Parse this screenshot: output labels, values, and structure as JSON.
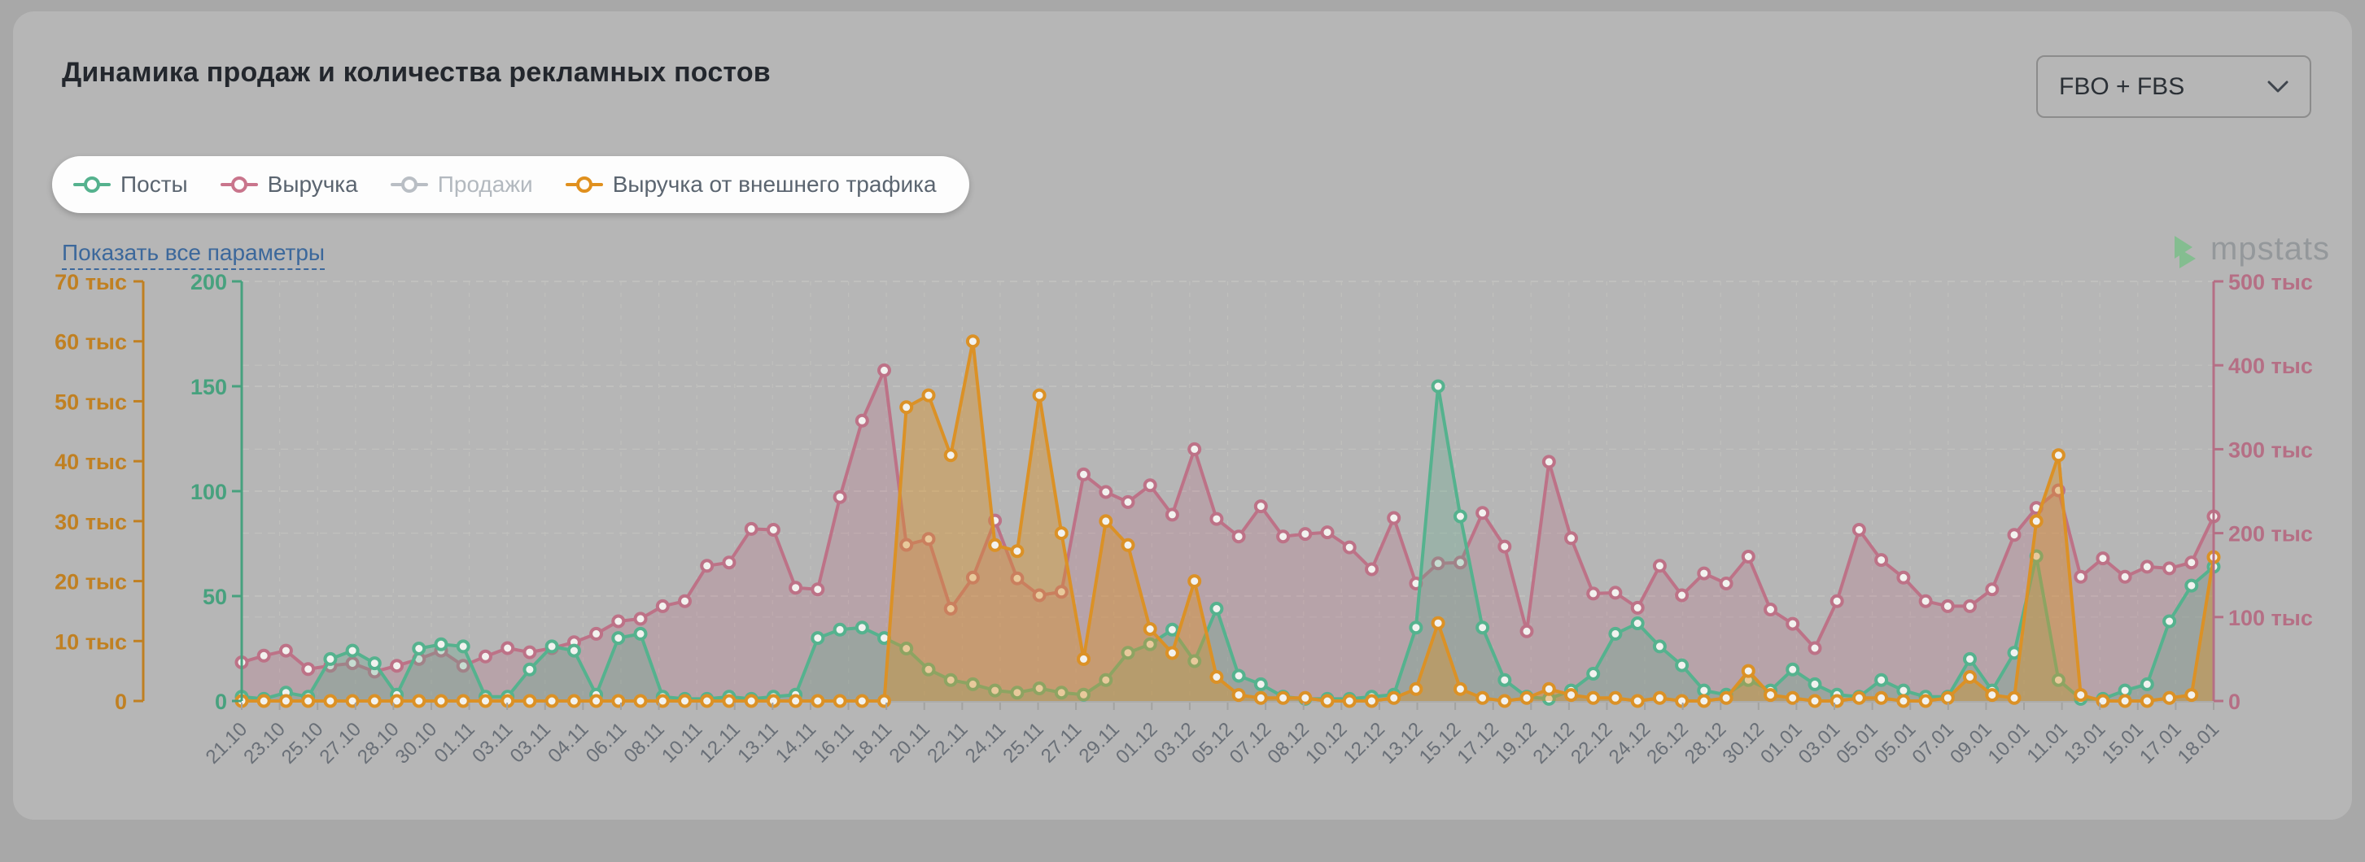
{
  "header": {
    "title": "Динамика продаж и количества рекламных постов",
    "select_value": "FBO + FBS"
  },
  "links": {
    "show_all_params": "Показать все параметры"
  },
  "watermark": {
    "text": "mpstats"
  },
  "legend": {
    "items": [
      {
        "label": "Посты",
        "color": "#55b28e",
        "disabled": false
      },
      {
        "label": "Выручка",
        "color": "#c9758c",
        "disabled": false
      },
      {
        "label": "Продажи",
        "color": "#b9bec4",
        "disabled": true
      },
      {
        "label": "Выручка от внешнего трафика",
        "color": "#e0901e",
        "disabled": false
      }
    ]
  },
  "chart_data": {
    "type": "line",
    "title": "Динамика продаж и количества рекламных постов",
    "grid": true,
    "legend_position": "top-left",
    "x_labels": [
      "21.10",
      "23.10",
      "25.10",
      "27.10",
      "28.10",
      "30.10",
      "01.11",
      "03.11",
      "03.11",
      "04.11",
      "06.11",
      "08.11",
      "10.11",
      "12.11",
      "13.11",
      "14.11",
      "16.11",
      "18.11",
      "20.11",
      "22.11",
      "24.11",
      "25.11",
      "27.11",
      "29.11",
      "01.12",
      "03.12",
      "05.12",
      "07.12",
      "08.12",
      "10.12",
      "12.12",
      "13.12",
      "15.12",
      "17.12",
      "19.12",
      "21.12",
      "22.12",
      "24.12",
      "26.12",
      "28.12",
      "30.12",
      "01.01",
      "03.01",
      "05.01",
      "05.01",
      "07.01",
      "09.01",
      "10.01",
      "11.01",
      "13.01",
      "15.01",
      "17.01",
      "18.01"
    ],
    "axes": {
      "left_outer": {
        "color": "#c08022",
        "max": 70000,
        "unit": "тыс",
        "ticks": [
          "70 тыс",
          "60 тыс",
          "50 тыс",
          "40 тыс",
          "30 тыс",
          "20 тыс",
          "10 тыс",
          "0"
        ]
      },
      "left_inner": {
        "color": "#47a17e",
        "max": 200,
        "ticks": [
          "200",
          "150",
          "100",
          "50",
          "0"
        ]
      },
      "right": {
        "color": "#b56f85",
        "max": 500000,
        "unit": "тыс",
        "ticks": [
          "500 тыс",
          "400 тыс",
          "300 тыс",
          "200 тыс",
          "100 тыс",
          "0"
        ]
      }
    },
    "series": [
      {
        "name": "Посты",
        "axis": "left_inner",
        "color": "#55b28e",
        "fill": "rgba(95,170,140,0.30)",
        "values": [
          2,
          1,
          4,
          2,
          20,
          24,
          18,
          3,
          25,
          27,
          26,
          2,
          2,
          15,
          26,
          24,
          3,
          30,
          32,
          2,
          1,
          1,
          2,
          1,
          2,
          3,
          30,
          34,
          35,
          30,
          25,
          15,
          10,
          8,
          5,
          4,
          6,
          4,
          3,
          10,
          23,
          27,
          34,
          19,
          44,
          12,
          8,
          2,
          1,
          1,
          1,
          2,
          3,
          35,
          150,
          88,
          35,
          10,
          2,
          1,
          5,
          13,
          32,
          37,
          26,
          17,
          5,
          3,
          10,
          5,
          15,
          8,
          3,
          2,
          10,
          5,
          2,
          2,
          20,
          5,
          23,
          69,
          10,
          1,
          1,
          5,
          8,
          38,
          55,
          64
        ]
      },
      {
        "name": "Выручка",
        "axis": "right",
        "color": "#bd7287",
        "fill": "rgba(189,114,135,0.27)",
        "values_unit": "тыс",
        "values": [
          46,
          54,
          60,
          38,
          42,
          45,
          35,
          42,
          50,
          60,
          42,
          53,
          63,
          58,
          63,
          70,
          80,
          95,
          98,
          113,
          119,
          161,
          165,
          205,
          204,
          135,
          133,
          243,
          334,
          394,
          186,
          193,
          110,
          147,
          215,
          146,
          126,
          130,
          270,
          249,
          237,
          257,
          222,
          300,
          217,
          196,
          232,
          196,
          199,
          201,
          183,
          157,
          218,
          140,
          164,
          165,
          224,
          184,
          83,
          285,
          194,
          128,
          129,
          111,
          161,
          126,
          152,
          140,
          172,
          109,
          92,
          63,
          119,
          204,
          168,
          147,
          119,
          113,
          113,
          133,
          198,
          230,
          251,
          148,
          170,
          148,
          160,
          158,
          165,
          220
        ]
      },
      {
        "name": "Продажи",
        "axis": "left_inner",
        "color": "#b9bec4",
        "disabled": true,
        "values": null
      },
      {
        "name": "Выручка от внешнего трафика",
        "axis": "left_outer",
        "color": "#db9126",
        "fill": "rgba(219,145,38,0.42)",
        "values_unit": "тыс",
        "values": [
          0,
          0,
          0,
          0,
          0,
          0,
          0,
          0,
          0,
          0,
          0,
          0,
          0,
          0,
          0,
          0,
          0,
          0,
          0,
          0,
          0,
          0,
          0,
          0,
          0,
          0,
          0,
          0,
          0,
          0,
          49,
          51,
          41,
          60,
          26,
          25,
          51,
          28,
          7,
          30,
          26,
          12,
          8,
          20,
          4,
          1,
          0.5,
          0.5,
          0.5,
          0,
          0,
          0,
          0.5,
          2,
          13,
          2,
          0.5,
          0,
          0.5,
          2,
          1,
          0.5,
          0.5,
          0,
          0.5,
          0,
          0,
          0.5,
          5,
          1,
          0.5,
          0,
          0,
          0.5,
          0.5,
          0,
          0,
          0.5,
          4,
          1,
          0.5,
          30,
          41,
          1,
          0,
          0,
          0,
          0.5,
          1,
          24
        ]
      }
    ]
  }
}
